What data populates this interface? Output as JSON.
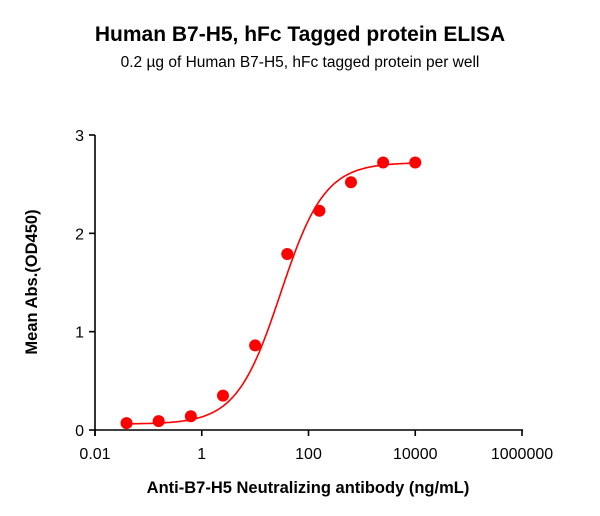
{
  "title": "Human B7-H5, hFc Tagged protein ELISA",
  "subtitle": "0.2 µg of Human B7-H5, hFc tagged protein per well",
  "colors": {
    "series": "#ff0000",
    "axis": "#000000"
  },
  "chart_data": {
    "type": "scatter",
    "title": "Human B7-H5, hFc Tagged protein ELISA",
    "subtitle": "0.2 µg of Human B7-H5, hFc tagged protein per well",
    "xlabel": "Anti-B7-H5 Neutralizing antibody (ng/mL)",
    "ylabel": "Mean Abs.(OD450)",
    "xscale": "log",
    "xlim": [
      0.01,
      1000000
    ],
    "ylim": [
      0,
      3
    ],
    "xticks": [
      "0.01",
      "1",
      "100",
      "10000",
      "1000000"
    ],
    "yticks": [
      "0",
      "1",
      "2",
      "3"
    ],
    "grid": false,
    "legend": null,
    "fit": "4-parameter logistic curve (red line)",
    "series": [
      {
        "name": "Human B7-H5, hFc",
        "color": "#ff0000",
        "x": [
          0.039,
          0.156,
          0.625,
          2.5,
          10,
          40,
          160,
          625,
          2500,
          10000
        ],
        "y": [
          0.07,
          0.09,
          0.14,
          0.35,
          0.86,
          1.79,
          2.23,
          2.52,
          2.72,
          2.72
        ]
      }
    ]
  }
}
